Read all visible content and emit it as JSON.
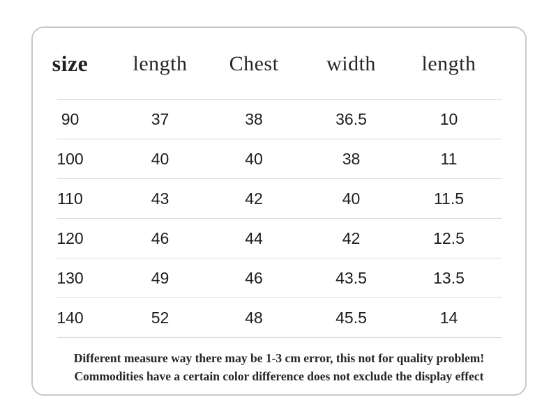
{
  "table": {
    "headers": [
      "size",
      "length",
      "Chest",
      "width",
      "length"
    ],
    "rows": [
      [
        "90",
        "37",
        "38",
        "36.5",
        "10"
      ],
      [
        "100",
        "40",
        "40",
        "38",
        "11"
      ],
      [
        "110",
        "43",
        "42",
        "40",
        "11.5"
      ],
      [
        "120",
        "46",
        "44",
        "42",
        "12.5"
      ],
      [
        "130",
        "49",
        "46",
        "43.5",
        "13.5"
      ],
      [
        "140",
        "52",
        "48",
        "45.5",
        "14"
      ]
    ]
  },
  "disclaimer": {
    "line1": "Different measure way there may be 1-3 cm error, this not for quality problem!",
    "line2": "Commodities have a certain color difference does not exclude the display effect"
  },
  "colors": {
    "background": "#ffffff",
    "card_border": "#c8c8c8",
    "divider": "#d9d9d9",
    "text": "#1c1c1c"
  }
}
